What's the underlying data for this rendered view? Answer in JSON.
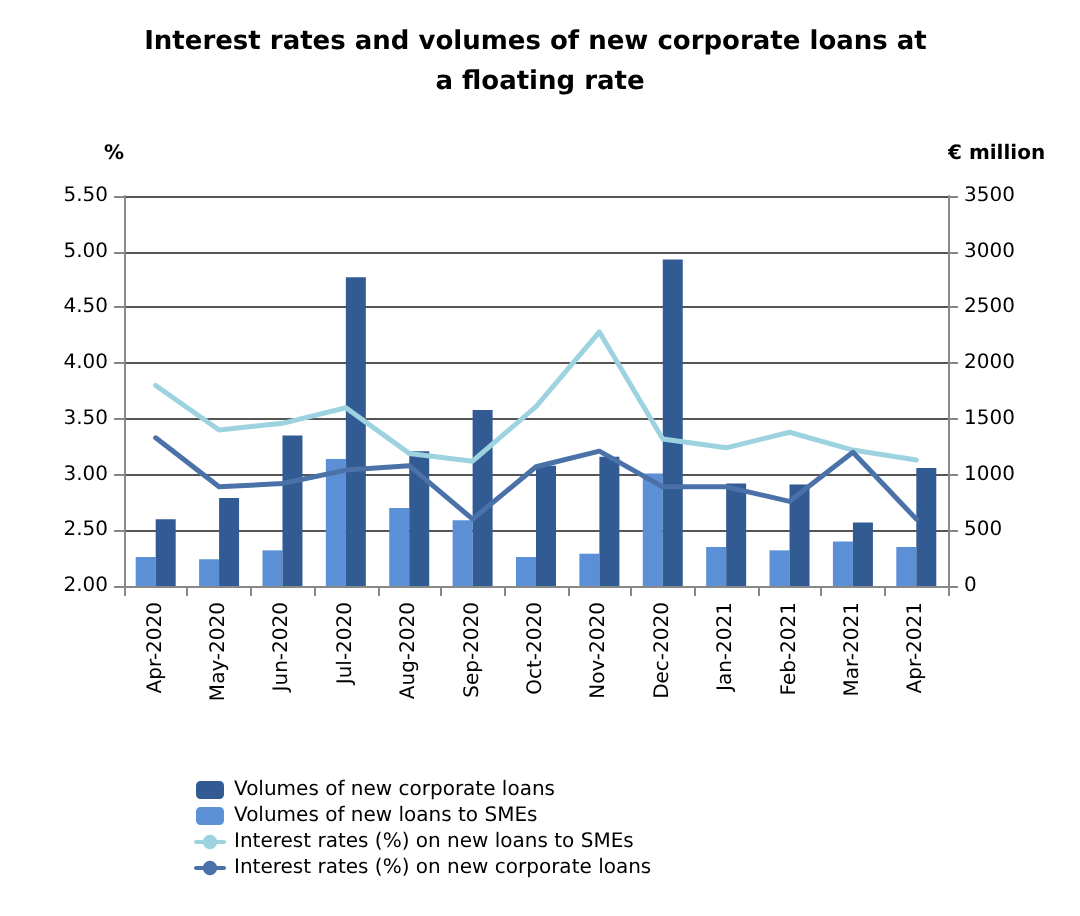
{
  "chart_data": {
    "type": "bar",
    "title": "Interest rates and volumes of new corporate loans at a floating rate",
    "ylabel": "%",
    "y2label": "€ million",
    "categories": [
      "Apr-2020",
      "May-2020",
      "Jun-2020",
      "Jul-2020",
      "Aug-2020",
      "Sep-2020",
      "Oct-2020",
      "Nov-2020",
      "Dec-2020",
      "Jan-2021",
      "Feb-2021",
      "Mar-2021",
      "Apr-2021"
    ],
    "series": [
      {
        "name": "Volumes of new corporate loans",
        "axis": "y2",
        "color": "#335b93",
        "values": [
          600,
          790,
          1350,
          2770,
          1210,
          1580,
          1080,
          1160,
          2930,
          920,
          910,
          570,
          1060
        ]
      },
      {
        "name": "Volumes of new loans to SMEs",
        "axis": "y2",
        "color": "#5b8fd6",
        "values": [
          260,
          240,
          320,
          1140,
          700,
          590,
          260,
          290,
          1010,
          350,
          320,
          400,
          350
        ]
      },
      {
        "name": "Interest rates (%) on new loans to SMEs",
        "type": "line",
        "color": "#9dd3e0",
        "values": [
          3.8,
          3.4,
          3.46,
          3.6,
          3.19,
          3.12,
          3.61,
          4.28,
          3.32,
          3.24,
          3.38,
          3.22,
          3.13
        ]
      },
      {
        "name": "Interest rates (%) on new corporate loans",
        "type": "line",
        "color": "#4a72a8",
        "values": [
          3.33,
          2.89,
          2.92,
          3.04,
          3.08,
          2.6,
          3.07,
          3.21,
          2.89,
          2.89,
          2.76,
          3.2,
          2.6
        ]
      }
    ],
    "ylim": [
      2,
      5.5
    ],
    "yticks": [
      {
        "value": 2,
        "label": "2.00"
      },
      {
        "value": 2.5,
        "label": "2.50"
      },
      {
        "value": 3,
        "label": "3.00"
      },
      {
        "value": 3.5,
        "label": "3.50"
      },
      {
        "value": 4,
        "label": "4.00"
      },
      {
        "value": 4.5,
        "label": "4.50"
      },
      {
        "value": 5,
        "label": "5.00"
      },
      {
        "value": 5.5,
        "label": "5.50"
      }
    ],
    "y2lim": [
      0,
      3500
    ],
    "y2ticks": [
      0,
      500,
      1000,
      1500,
      2000,
      2500,
      3000,
      3500
    ],
    "grid": "y",
    "legend": "bottom left",
    "marker": "none",
    "line_style": "solid"
  }
}
